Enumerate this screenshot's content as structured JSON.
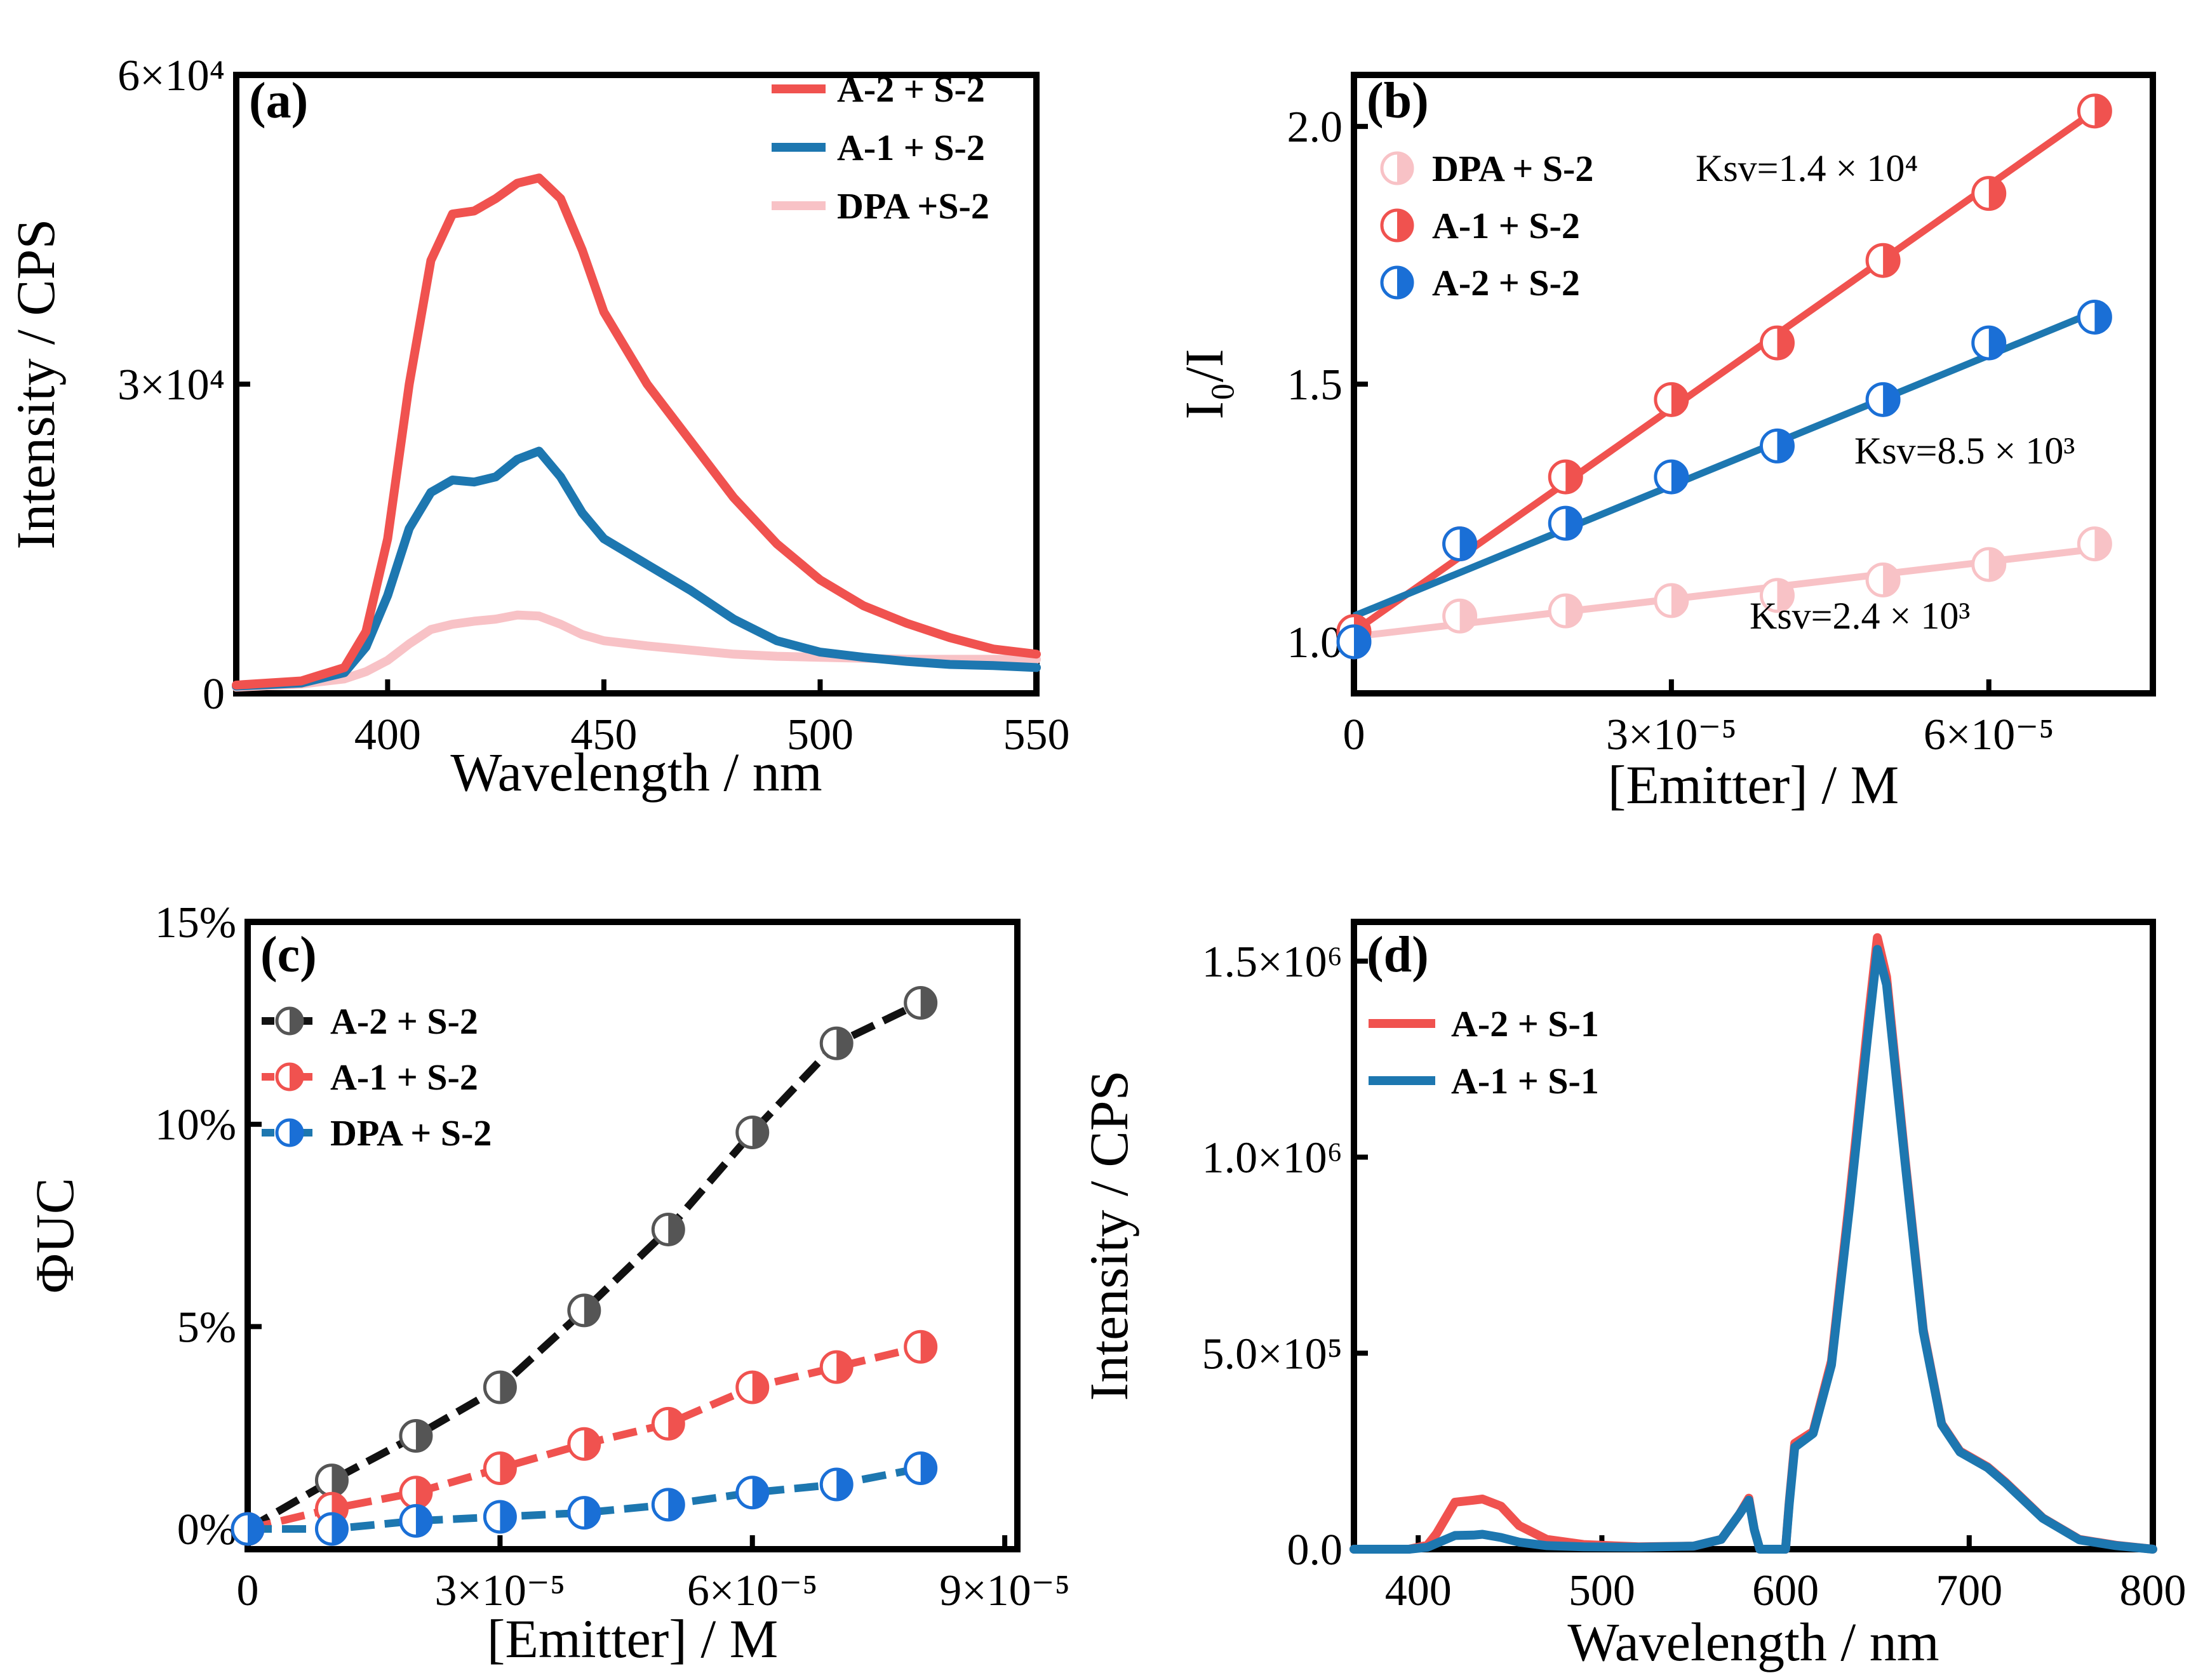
{
  "colors": {
    "red": "#f0524f",
    "blue": "#1d77b0",
    "pink": "#f8c2c6",
    "black": "#111111",
    "marker_blue": "#1a6fd6"
  },
  "chart_data": [
    {
      "panel": "a",
      "label": "(a)",
      "type": "line",
      "xlabel": "Wavelength / nm",
      "ylabel": "Intensity / CPS",
      "xlim": [
        365,
        550
      ],
      "ylim": [
        0,
        60000
      ],
      "xticks": [
        {
          "v": 400,
          "label": "400"
        },
        {
          "v": 450,
          "label": "450"
        },
        {
          "v": 500,
          "label": "500"
        },
        {
          "v": 550,
          "label": "550"
        }
      ],
      "yticks": [
        {
          "v": 0,
          "label": "0"
        },
        {
          "v": 30000,
          "label": "3×10⁴"
        },
        {
          "v": 60000,
          "label": "6×10⁴"
        }
      ],
      "legend": [
        "A-2 + S-2",
        "A-1 + S-2",
        "DPA +S-2"
      ],
      "series": [
        {
          "name": "A-2 + S-2",
          "color": "#f0524f",
          "x": [
            365,
            380,
            390,
            395,
            400,
            405,
            410,
            415,
            420,
            425,
            430,
            435,
            440,
            445,
            450,
            460,
            470,
            480,
            490,
            500,
            510,
            520,
            530,
            540,
            550
          ],
          "y": [
            800,
            1200,
            2500,
            6000,
            15000,
            30000,
            42000,
            46500,
            46800,
            48000,
            49500,
            50000,
            48000,
            43000,
            37000,
            30000,
            24500,
            19000,
            14500,
            11000,
            8500,
            6800,
            5400,
            4300,
            3800
          ]
        },
        {
          "name": "A-1 + S-2",
          "color": "#1d77b0",
          "x": [
            365,
            380,
            390,
            395,
            400,
            405,
            410,
            415,
            420,
            425,
            430,
            435,
            440,
            445,
            450,
            460,
            470,
            480,
            490,
            500,
            510,
            520,
            530,
            540,
            550
          ],
          "y": [
            700,
            1000,
            2000,
            4500,
            9500,
            16000,
            19500,
            20700,
            20500,
            21000,
            22700,
            23500,
            21000,
            17500,
            15000,
            12500,
            10000,
            7200,
            5100,
            4000,
            3500,
            3100,
            2800,
            2700,
            2500
          ]
        },
        {
          "name": "DPA +S-2",
          "color": "#f8c2c6",
          "x": [
            365,
            380,
            390,
            395,
            400,
            405,
            410,
            415,
            420,
            425,
            430,
            435,
            440,
            445,
            450,
            460,
            470,
            480,
            490,
            500,
            510,
            520,
            530,
            540,
            550
          ],
          "y": [
            600,
            900,
            1400,
            2100,
            3200,
            4800,
            6200,
            6700,
            7000,
            7200,
            7600,
            7500,
            6700,
            5700,
            5100,
            4600,
            4200,
            3800,
            3600,
            3500,
            3400,
            3300,
            3300,
            3300,
            3300
          ]
        }
      ]
    },
    {
      "panel": "b",
      "label": "(b)",
      "type": "scatter",
      "xlabel": "[Emitter] / M",
      "ylabel": "I₀/I",
      "xlim": [
        0,
        7.55e-05
      ],
      "ylim": [
        0.9,
        2.1
      ],
      "xticks": [
        {
          "v": 0,
          "label": "0"
        },
        {
          "v": 3e-05,
          "label": "3×10⁻⁵"
        },
        {
          "v": 6e-05,
          "label": "6×10⁻⁵"
        }
      ],
      "yticks": [
        {
          "v": 1.0,
          "label": "1.0"
        },
        {
          "v": 1.5,
          "label": "1.5"
        },
        {
          "v": 2.0,
          "label": "2.0"
        }
      ],
      "legend": [
        "DPA + S-2",
        "A-1 + S-2",
        "A-2 + S-2"
      ],
      "annotations": [
        "Ksv=1.4 × 10⁴",
        "Ksv=8.5 × 10³",
        "Ksv=2.4 × 10³"
      ],
      "series": [
        {
          "name": "DPA + S-2",
          "color": "#f8c2c6",
          "x": [
            0,
            1e-05,
            2e-05,
            3e-05,
            4e-05,
            5e-05,
            6e-05,
            7e-05
          ],
          "y": [
            1.0,
            1.05,
            1.06,
            1.08,
            1.09,
            1.12,
            1.15,
            1.19
          ],
          "fit": [
            [
              0,
              1.01
            ],
            [
              7e-05,
              1.18
            ]
          ]
        },
        {
          "name": "A-1 + S-2",
          "color": "#f0524f",
          "x": [
            0,
            1e-05,
            2e-05,
            3e-05,
            4e-05,
            5e-05,
            6e-05,
            7e-05
          ],
          "y": [
            1.02,
            1.19,
            1.32,
            1.47,
            1.58,
            1.74,
            1.87,
            2.03
          ],
          "fit": [
            [
              0,
              1.02
            ],
            [
              7e-05,
              2.03
            ]
          ]
        },
        {
          "name": "A-2 + S-2",
          "color": "#1a6fd6",
          "x": [
            0,
            1e-05,
            2e-05,
            3e-05,
            4e-05,
            5e-05,
            6e-05,
            7e-05
          ],
          "y": [
            1.0,
            1.19,
            1.23,
            1.32,
            1.38,
            1.47,
            1.58,
            1.63
          ],
          "fit": [
            [
              0,
              1.05
            ],
            [
              7e-05,
              1.64
            ]
          ]
        }
      ]
    },
    {
      "panel": "c",
      "label": "(c)",
      "type": "line",
      "xlabel": "[Emitter] / M",
      "ylabel": "ΦUC",
      "xlim": [
        0,
        9.15e-05
      ],
      "ylim": [
        -0.005,
        0.15
      ],
      "xticks": [
        {
          "v": 0,
          "label": "0"
        },
        {
          "v": 3e-05,
          "label": "3×10⁻⁵"
        },
        {
          "v": 6e-05,
          "label": "6×10⁻⁵"
        },
        {
          "v": 9e-05,
          "label": "9×10⁻⁵"
        }
      ],
      "yticks": [
        {
          "v": 0,
          "label": "0%"
        },
        {
          "v": 0.05,
          "label": "5%"
        },
        {
          "v": 0.1,
          "label": "10%"
        },
        {
          "v": 0.15,
          "label": "15%"
        }
      ],
      "legend": [
        "A-2 + S-2",
        "A-1 + S-2",
        "DPA + S-2"
      ],
      "series": [
        {
          "name": "A-2 + S-2",
          "color": "#111111",
          "x": [
            0,
            1e-05,
            2e-05,
            3e-05,
            4e-05,
            5e-05,
            6e-05,
            7e-05,
            8e-05
          ],
          "y": [
            0,
            0.012,
            0.023,
            0.035,
            0.054,
            0.074,
            0.098,
            0.12,
            0.13
          ]
        },
        {
          "name": "A-1 + S-2",
          "color": "#f0524f",
          "x": [
            0,
            1e-05,
            2e-05,
            3e-05,
            4e-05,
            5e-05,
            6e-05,
            7e-05,
            8e-05
          ],
          "y": [
            0,
            0.005,
            0.009,
            0.015,
            0.021,
            0.026,
            0.035,
            0.04,
            0.045
          ]
        },
        {
          "name": "DPA + S-2",
          "color": "#1d77b0",
          "x": [
            0,
            1e-05,
            2e-05,
            3e-05,
            4e-05,
            5e-05,
            6e-05,
            7e-05,
            8e-05
          ],
          "y": [
            0,
            0,
            0.002,
            0.003,
            0.004,
            0.006,
            0.009,
            0.011,
            0.015
          ]
        }
      ]
    },
    {
      "panel": "d",
      "label": "(d)",
      "type": "line",
      "xlabel": "Wavelength / nm",
      "ylabel": "Intensity / CPS",
      "xlim": [
        365,
        800
      ],
      "ylim": [
        0,
        1600000
      ],
      "xticks": [
        {
          "v": 400,
          "label": "400"
        },
        {
          "v": 500,
          "label": "500"
        },
        {
          "v": 600,
          "label": "600"
        },
        {
          "v": 700,
          "label": "700"
        },
        {
          "v": 800,
          "label": "800"
        }
      ],
      "yticks": [
        {
          "v": 0,
          "label": "0.0"
        },
        {
          "v": 500000,
          "label": "5.0×10⁵"
        },
        {
          "v": 1000000,
          "label": "1.0×10⁶"
        },
        {
          "v": 1500000,
          "label": "1.5×10⁶"
        }
      ],
      "legend": [
        "A-2 + S-1",
        "A-1 + S-1"
      ],
      "series": [
        {
          "name": "A-2 + S-1",
          "color": "#f0524f",
          "x": [
            365,
            395,
            405,
            410,
            420,
            430,
            435,
            445,
            455,
            470,
            490,
            520,
            550,
            565,
            575,
            580,
            583,
            586,
            600,
            602,
            605,
            615,
            625,
            635,
            645,
            650,
            655,
            665,
            675,
            685,
            695,
            710,
            720,
            740,
            760,
            780,
            800
          ],
          "y": [
            0,
            0,
            10000,
            40000,
            120000,
            125000,
            128000,
            110000,
            60000,
            25000,
            12000,
            6000,
            8000,
            25000,
            90000,
            130000,
            50000,
            0,
            0,
            120000,
            270000,
            300000,
            480000,
            900000,
            1350000,
            1560000,
            1460000,
            1000000,
            560000,
            320000,
            250000,
            210000,
            170000,
            80000,
            25000,
            10000,
            0
          ]
        },
        {
          "name": "A-1 + S-1",
          "color": "#1d77b0",
          "x": [
            365,
            395,
            405,
            410,
            420,
            430,
            435,
            445,
            455,
            470,
            490,
            520,
            550,
            565,
            575,
            580,
            583,
            586,
            600,
            602,
            605,
            615,
            625,
            635,
            645,
            650,
            655,
            665,
            675,
            685,
            695,
            710,
            720,
            740,
            760,
            780,
            800
          ],
          "y": [
            0,
            0,
            5000,
            15000,
            35000,
            36000,
            38000,
            30000,
            18000,
            9000,
            6000,
            5000,
            8000,
            25000,
            90000,
            125000,
            50000,
            0,
            0,
            115000,
            260000,
            295000,
            470000,
            880000,
            1320000,
            1530000,
            1440000,
            990000,
            555000,
            318000,
            248000,
            208000,
            168000,
            79000,
            24000,
            9000,
            0
          ]
        }
      ]
    }
  ]
}
